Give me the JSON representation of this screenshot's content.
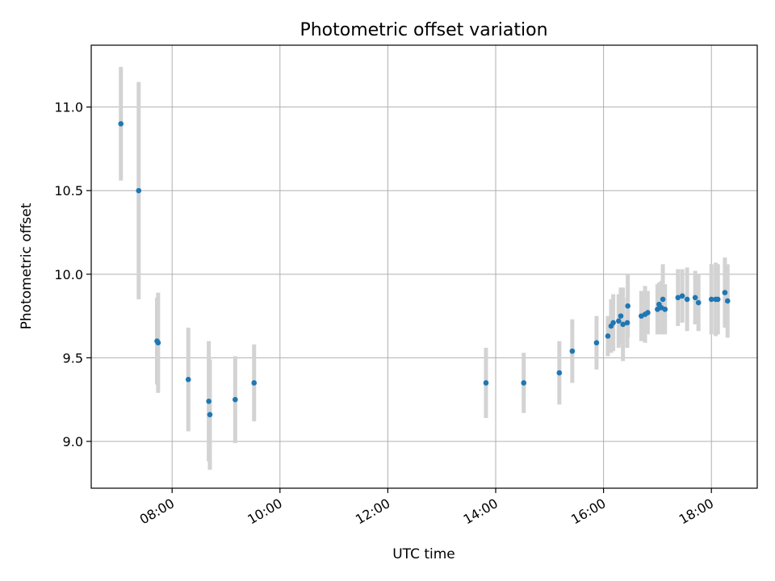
{
  "chart_data": {
    "type": "scatter",
    "title": "Photometric offset variation",
    "xlabel": "UTC time",
    "ylabel": "Photometric offset",
    "x_unit": "UTC time (hours)",
    "xlim": [
      6.5,
      18.85
    ],
    "ylim": [
      8.72,
      11.37
    ],
    "x_ticks": [
      8,
      10,
      12,
      14,
      16,
      18
    ],
    "x_tick_labels": [
      "08:00",
      "10:00",
      "12:00",
      "14:00",
      "16:00",
      "18:00"
    ],
    "y_ticks": [
      9.0,
      9.5,
      10.0,
      10.5,
      11.0
    ],
    "y_tick_labels": [
      "9.0",
      "9.5",
      "10.0",
      "10.5",
      "11.0"
    ],
    "grid": true,
    "legend": "none",
    "point_color": "#1f77b4",
    "errorbar_color": "#d3d3d3",
    "points": [
      {
        "x": 7.05,
        "y": 10.9,
        "err": 0.34
      },
      {
        "x": 7.38,
        "y": 10.5,
        "err": 0.65
      },
      {
        "x": 7.72,
        "y": 9.6,
        "err": 0.26
      },
      {
        "x": 7.74,
        "y": 9.59,
        "err": 0.3
      },
      {
        "x": 8.3,
        "y": 9.37,
        "err": 0.31
      },
      {
        "x": 8.68,
        "y": 9.24,
        "err": 0.36
      },
      {
        "x": 8.7,
        "y": 9.16,
        "err": 0.33
      },
      {
        "x": 9.17,
        "y": 9.25,
        "err": 0.26
      },
      {
        "x": 9.52,
        "y": 9.35,
        "err": 0.23
      },
      {
        "x": 13.82,
        "y": 9.35,
        "err": 0.21
      },
      {
        "x": 14.52,
        "y": 9.35,
        "err": 0.18
      },
      {
        "x": 15.18,
        "y": 9.41,
        "err": 0.19
      },
      {
        "x": 15.42,
        "y": 9.54,
        "err": 0.19
      },
      {
        "x": 15.87,
        "y": 9.59,
        "err": 0.16
      },
      {
        "x": 16.08,
        "y": 9.63,
        "err": 0.12
      },
      {
        "x": 16.14,
        "y": 9.69,
        "err": 0.16
      },
      {
        "x": 16.18,
        "y": 9.71,
        "err": 0.17
      },
      {
        "x": 16.28,
        "y": 9.72,
        "err": 0.16
      },
      {
        "x": 16.32,
        "y": 9.75,
        "err": 0.17
      },
      {
        "x": 16.36,
        "y": 9.7,
        "err": 0.22
      },
      {
        "x": 16.45,
        "y": 9.81,
        "err": 0.19
      },
      {
        "x": 16.44,
        "y": 9.71,
        "err": 0.15
      },
      {
        "x": 16.7,
        "y": 9.75,
        "err": 0.15
      },
      {
        "x": 16.77,
        "y": 9.76,
        "err": 0.17
      },
      {
        "x": 16.82,
        "y": 9.77,
        "err": 0.13
      },
      {
        "x": 17.0,
        "y": 9.79,
        "err": 0.15
      },
      {
        "x": 17.03,
        "y": 9.82,
        "err": 0.13
      },
      {
        "x": 17.07,
        "y": 9.8,
        "err": 0.16
      },
      {
        "x": 17.1,
        "y": 9.85,
        "err": 0.21
      },
      {
        "x": 17.14,
        "y": 9.79,
        "err": 0.15
      },
      {
        "x": 17.38,
        "y": 9.86,
        "err": 0.17
      },
      {
        "x": 17.46,
        "y": 9.87,
        "err": 0.16
      },
      {
        "x": 17.55,
        "y": 9.85,
        "err": 0.19
      },
      {
        "x": 17.7,
        "y": 9.86,
        "err": 0.16
      },
      {
        "x": 17.76,
        "y": 9.83,
        "err": 0.17
      },
      {
        "x": 18.0,
        "y": 9.85,
        "err": 0.21
      },
      {
        "x": 18.08,
        "y": 9.85,
        "err": 0.22
      },
      {
        "x": 18.12,
        "y": 9.85,
        "err": 0.21
      },
      {
        "x": 18.25,
        "y": 9.89,
        "err": 0.21
      },
      {
        "x": 18.3,
        "y": 9.84,
        "err": 0.22
      }
    ]
  }
}
